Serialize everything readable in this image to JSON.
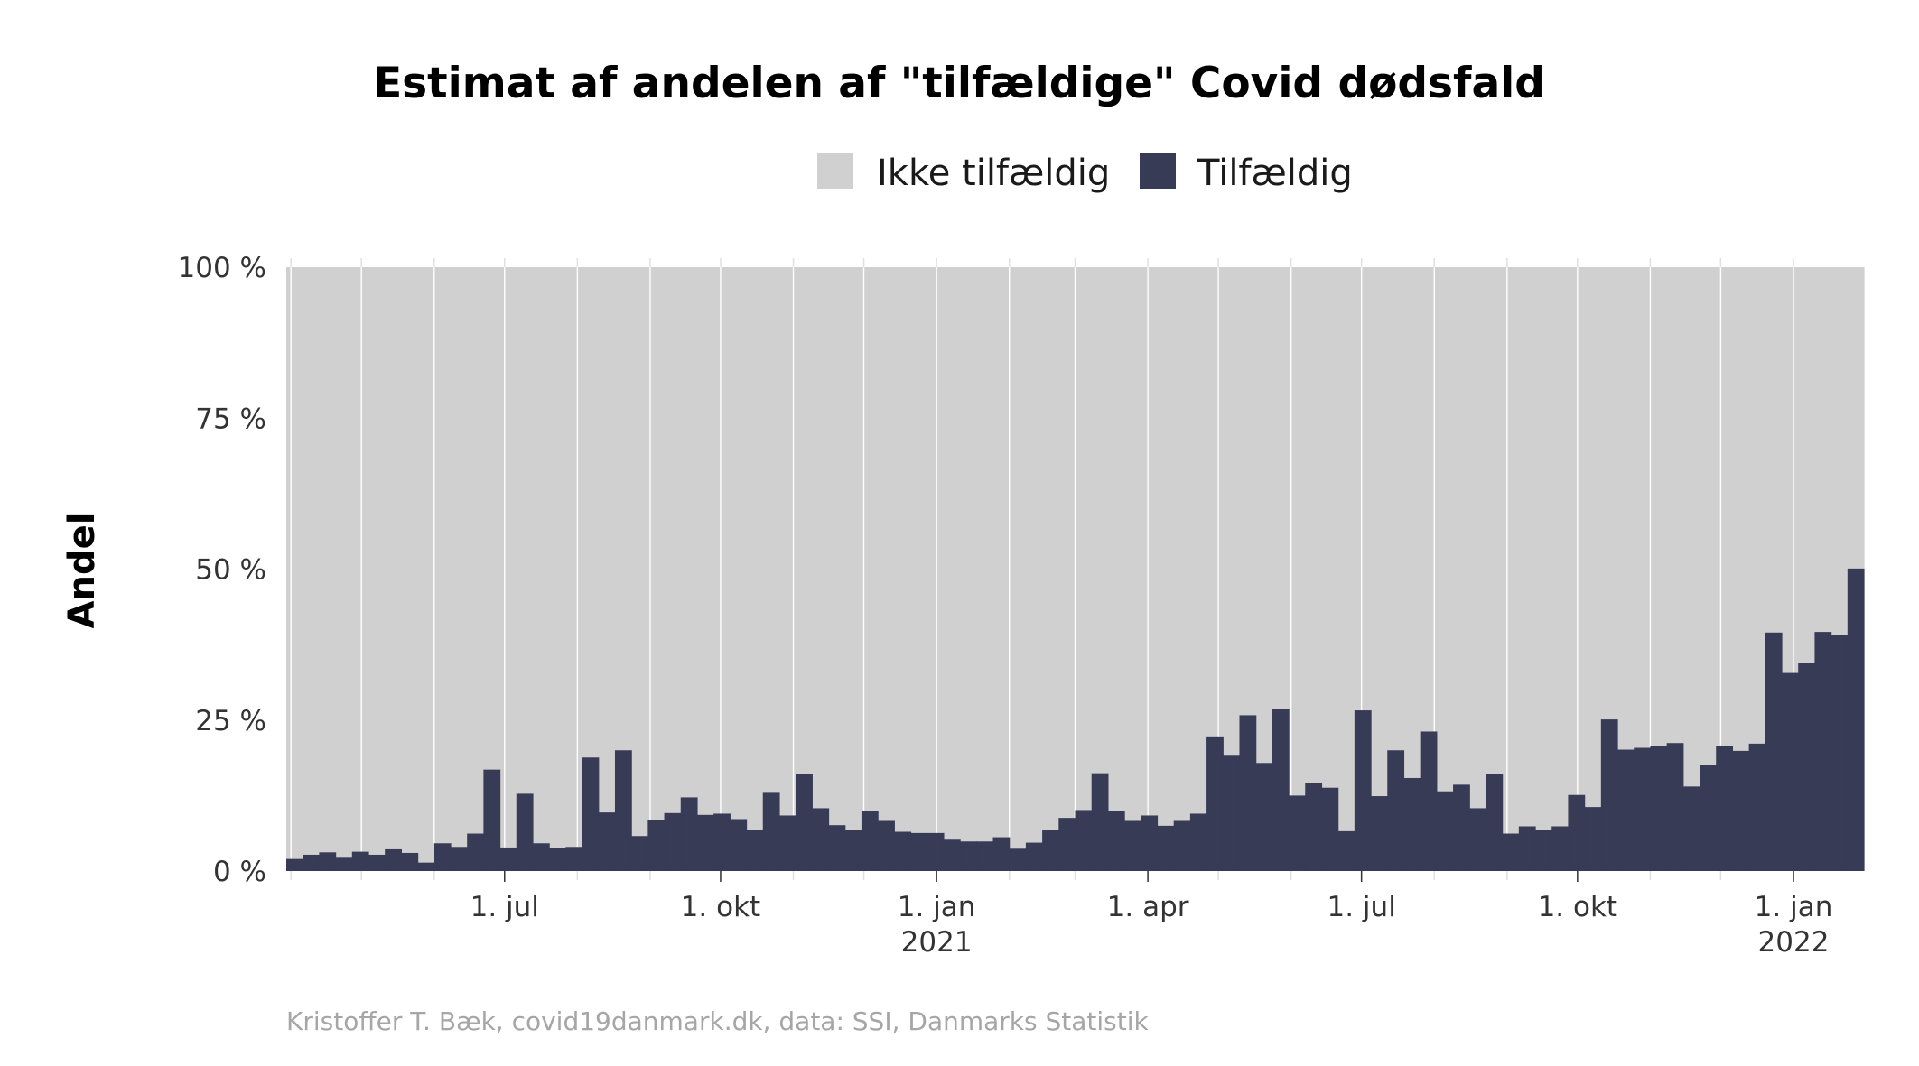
{
  "chart_data": {
    "type": "bar",
    "stacked": true,
    "percent_scale": true,
    "title": "Estimat af andelen af \"tilfældige\" Covid dødsfald",
    "ylabel": "Andel",
    "xlabel": "",
    "ylim": [
      0,
      100
    ],
    "y_ticks": [
      0,
      25,
      50,
      75,
      100
    ],
    "y_tick_labels": [
      "0 %",
      "25 %",
      "50 %",
      "75 %",
      "100 %"
    ],
    "x_start": "2020-03-30",
    "x_end": "2022-01-31",
    "x_ticks": [
      {
        "date": "2020-07-01",
        "label": "1. jul",
        "year": ""
      },
      {
        "date": "2020-10-01",
        "label": "1. okt",
        "year": ""
      },
      {
        "date": "2021-01-01",
        "label": "1. jan",
        "year": "2021"
      },
      {
        "date": "2021-04-01",
        "label": "1. apr",
        "year": ""
      },
      {
        "date": "2021-07-01",
        "label": "1. jul",
        "year": ""
      },
      {
        "date": "2021-10-01",
        "label": "1. okt",
        "year": ""
      },
      {
        "date": "2022-01-01",
        "label": "1. jan",
        "year": "2022"
      }
    ],
    "legend": {
      "position": "top"
    },
    "series": [
      {
        "name": "Ikke tilfældig",
        "color": "#d0d0d0"
      },
      {
        "name": "Tilfældig",
        "color": "#373b56"
      }
    ],
    "tilfaeldig_values": [
      2.0,
      2.7,
      3.1,
      2.2,
      3.2,
      2.7,
      3.6,
      3.0,
      1.4,
      4.6,
      4.0,
      6.2,
      16.8,
      3.9,
      12.8,
      4.6,
      3.8,
      4.0,
      18.8,
      9.7,
      20.0,
      5.8,
      8.5,
      9.6,
      12.2,
      9.3,
      9.5,
      8.6,
      6.8,
      13.1,
      9.2,
      16.1,
      10.4,
      7.6,
      6.8,
      10.0,
      8.3,
      6.5,
      6.3,
      6.3,
      5.2,
      4.9,
      4.9,
      5.6,
      3.7,
      4.7,
      6.8,
      8.8,
      10.1,
      16.2,
      10.0,
      8.3,
      9.2,
      7.5,
      8.3,
      9.5,
      22.3,
      19.1,
      25.8,
      17.9,
      26.9,
      12.5,
      14.5,
      13.8,
      6.6,
      26.6,
      12.4,
      20.0,
      15.4,
      23.1,
      13.2,
      14.3,
      10.4,
      16.1,
      6.2,
      7.4,
      6.8,
      7.4,
      12.6,
      10.6,
      25.1,
      20.1,
      20.4,
      20.7,
      21.2,
      14.0,
      17.6,
      20.7,
      19.9,
      21.1,
      39.5,
      32.8,
      34.4,
      39.6,
      39.1,
      50.1
    ]
  },
  "caption": "Kristoffer T. Bæk, covid19danmark.dk, data: SSI, Danmarks Statistik"
}
